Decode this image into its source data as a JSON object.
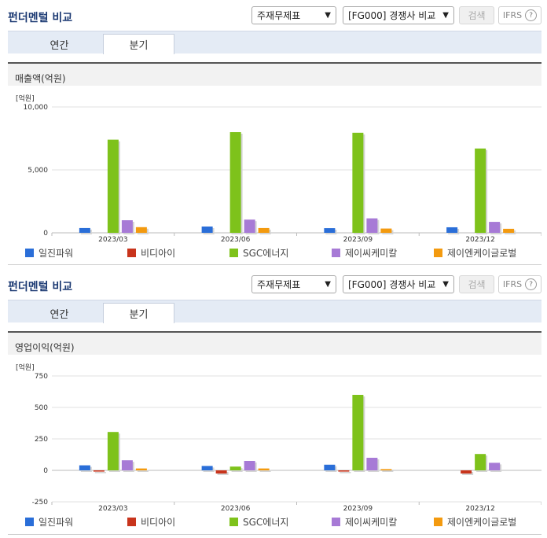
{
  "sections": [
    {
      "title": "펀더멘털 비교",
      "select1": "주재무제표",
      "select2": "[FG000] 경쟁사 비교",
      "search_label": "검색",
      "ifrs_label": "IFRS",
      "help_glyph": "?",
      "tabs": [
        {
          "label": "연간",
          "active": false
        },
        {
          "label": "분기",
          "active": true
        }
      ],
      "panel_title": "매출액(억원)",
      "unit": "[억원]"
    },
    {
      "title": "펀더멘털 비교",
      "select1": "주재무제표",
      "select2": "[FG000] 경쟁사 비교",
      "search_label": "검색",
      "ifrs_label": "IFRS",
      "help_glyph": "?",
      "tabs": [
        {
          "label": "연간",
          "active": false
        },
        {
          "label": "분기",
          "active": true
        }
      ],
      "panel_title": "영업이익(억원)",
      "unit": "[억원]"
    }
  ],
  "colors": {
    "일진파워": "#2a6ed8",
    "비디아이": "#c8341c",
    "SGC에너지": "#7ec21b",
    "제이씨케미칼": "#a77ad6",
    "제이엔케이글로벌": "#f39a0f"
  },
  "chart_data": [
    {
      "type": "bar",
      "title": "매출액(억원)",
      "ylabel": "[억원]",
      "categories": [
        "2023/03",
        "2023/06",
        "2023/09",
        "2023/12"
      ],
      "yticks": [
        0,
        5000,
        10000
      ],
      "ytick_labels": [
        "0",
        "5,000",
        "10,000"
      ],
      "ylim": [
        0,
        10000
      ],
      "series": [
        {
          "name": "일진파워",
          "color": "#2a6ed8",
          "values": [
            380,
            500,
            370,
            440
          ]
        },
        {
          "name": "비디아이",
          "color": "#c8341c",
          "values": [
            0,
            0,
            0,
            0
          ]
        },
        {
          "name": "SGC에너지",
          "color": "#7ec21b",
          "values": [
            7400,
            8000,
            7950,
            6700
          ]
        },
        {
          "name": "제이씨케미칼",
          "color": "#a77ad6",
          "values": [
            1000,
            1050,
            1150,
            870
          ]
        },
        {
          "name": "제이엔케이글로벌",
          "color": "#f39a0f",
          "values": [
            450,
            380,
            340,
            320
          ]
        }
      ]
    },
    {
      "type": "bar",
      "title": "영업이익(억원)",
      "ylabel": "[억원]",
      "categories": [
        "2023/03",
        "2023/06",
        "2023/09",
        "2023/12"
      ],
      "yticks": [
        -250,
        0,
        250,
        500,
        750
      ],
      "ytick_labels": [
        "-250",
        "0",
        "250",
        "500",
        "750"
      ],
      "ylim": [
        -250,
        750
      ],
      "series": [
        {
          "name": "일진파워",
          "color": "#2a6ed8",
          "values": [
            40,
            35,
            45,
            0
          ]
        },
        {
          "name": "비디아이",
          "color": "#c8341c",
          "values": [
            -10,
            -25,
            -10,
            -25
          ]
        },
        {
          "name": "SGC에너지",
          "color": "#7ec21b",
          "values": [
            305,
            30,
            600,
            130
          ]
        },
        {
          "name": "제이씨케미칼",
          "color": "#a77ad6",
          "values": [
            80,
            75,
            100,
            60
          ]
        },
        {
          "name": "제이엔케이글로벌",
          "color": "#f39a0f",
          "values": [
            15,
            15,
            10,
            0
          ]
        }
      ]
    }
  ]
}
